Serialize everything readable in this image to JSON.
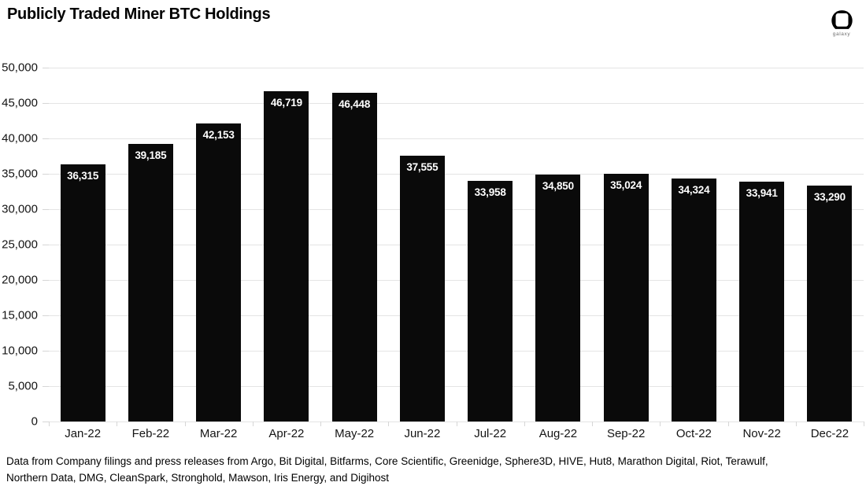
{
  "header": {
    "title": "Publicly Traded Miner BTC Holdings",
    "logo_label": "galaxy"
  },
  "chart_data": {
    "type": "bar",
    "title": "Publicly Traded Miner BTC Holdings",
    "categories": [
      "Jan-22",
      "Feb-22",
      "Mar-22",
      "Apr-22",
      "May-22",
      "Jun-22",
      "Jul-22",
      "Aug-22",
      "Sep-22",
      "Oct-22",
      "Nov-22",
      "Dec-22"
    ],
    "values": [
      36315,
      39185,
      42153,
      46719,
      46448,
      37555,
      33958,
      34850,
      35024,
      34324,
      33941,
      33290
    ],
    "data_labels": [
      "36,315",
      "39,185",
      "42,153",
      "46,719",
      "46,448",
      "37,555",
      "33,958",
      "34,850",
      "35,024",
      "34,324",
      "33,941",
      "33,290"
    ],
    "xlabel": "",
    "ylabel": "",
    "ylim": [
      0,
      50000
    ],
    "y_tick_step": 5000,
    "y_tick_labels": [
      "50,000",
      "45,000",
      "40,000",
      "35,000",
      "30,000",
      "25,000",
      "20,000",
      "15,000",
      "10,000",
      "5,000",
      "0"
    ],
    "grid": true,
    "legend": false,
    "bar_color": "#0a0a0a",
    "data_label_color": "#ffffff",
    "gridline_color": "#e4e4e4"
  },
  "footer": {
    "source_line1": "Data from Company filings and press releases from Argo, Bit Digital, Bitfarms, Core Scientific, Greenidge, Sphere3D, HIVE, Hut8, Marathon Digital, Riot, Terawulf,",
    "source_line2": "Northern Data, DMG, CleanSpark, Stronghold, Mawson, Iris Energy, and Digihost"
  }
}
